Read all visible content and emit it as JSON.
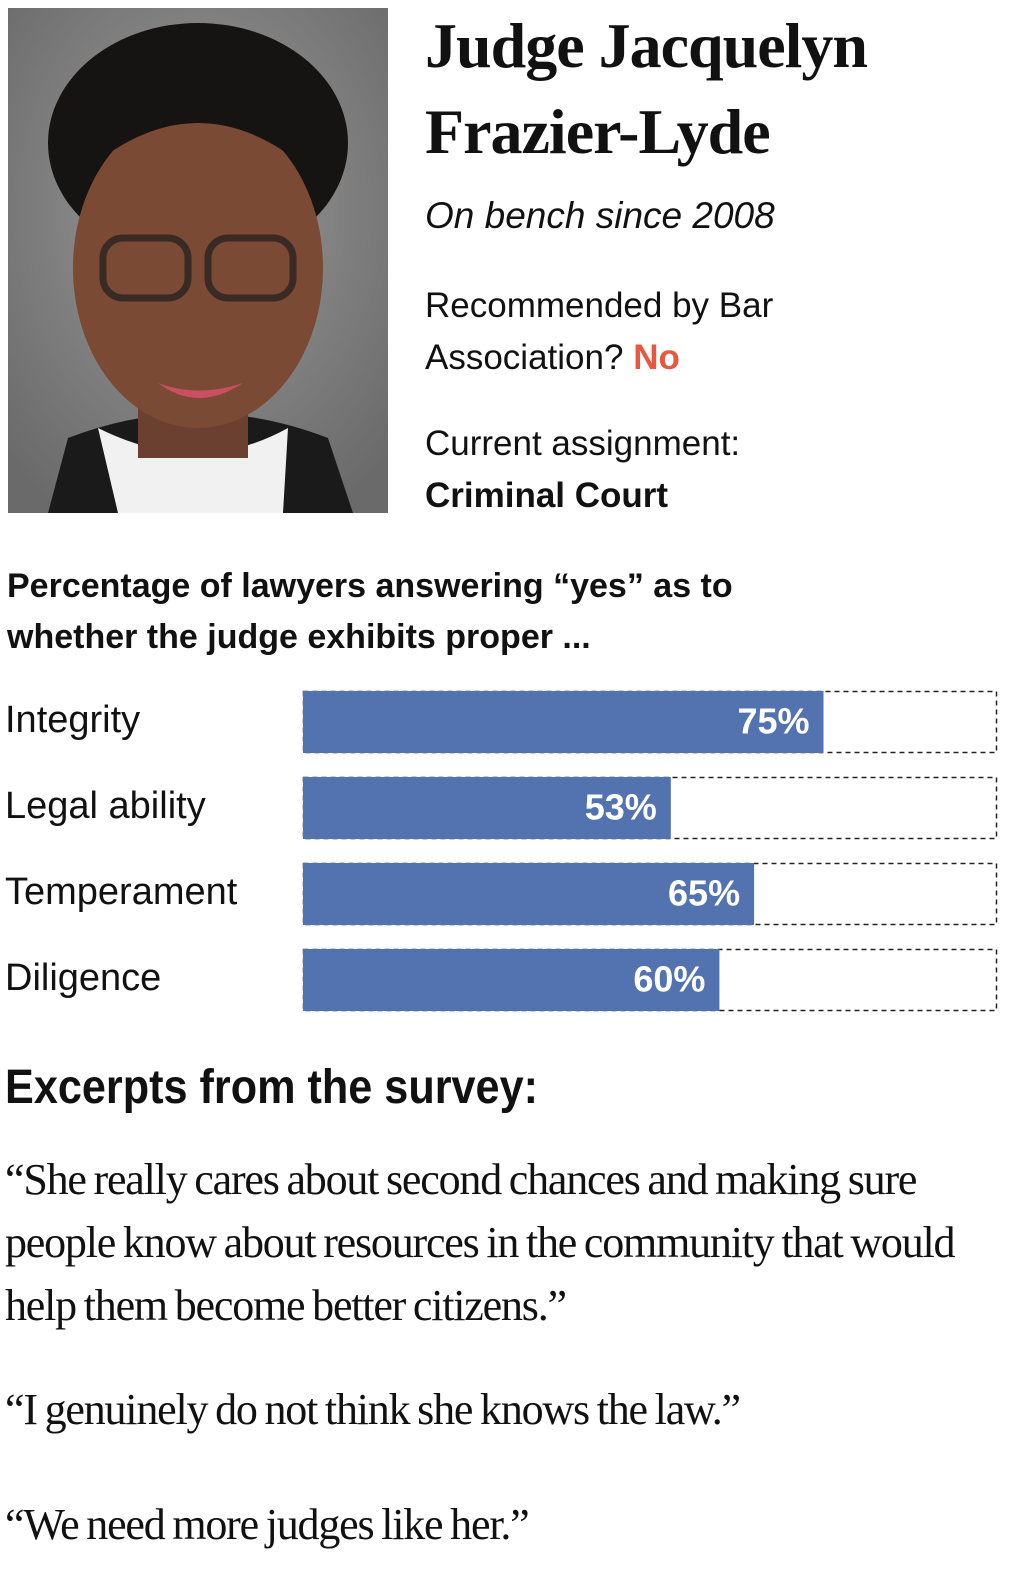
{
  "profile": {
    "name_line1": "Judge Jacquelyn",
    "name_line2": "Frazier-Lyde",
    "bench": "On bench since 2008",
    "recommended_question_line1": "Recommended by Bar",
    "recommended_question_line2": "Association?",
    "recommended_answer": "No",
    "assignment_label": "Current assignment:",
    "assignment_value": "Criminal Court"
  },
  "chart_data": {
    "type": "bar",
    "orientation": "horizontal",
    "title_line1": "Percentage of lawyers answering “yes” as to",
    "title_line2": "whether the judge exhibits proper ...",
    "categories": [
      "Integrity",
      "Legal ability",
      "Temperament",
      "Diligence"
    ],
    "values": [
      75,
      53,
      65,
      60
    ],
    "value_labels": [
      "75%",
      "53%",
      "65%",
      "60%"
    ],
    "color": "#5272b0",
    "xlim": [
      0,
      100
    ]
  },
  "excerpts": {
    "heading": "Excerpts from the survey:",
    "quotes": [
      "“She really cares about second chances and making sure people know about resources in the community that would help them become better citizens.”",
      "“I genuinely do not think she knows the law.”",
      "“We need more judges like her.”"
    ]
  }
}
